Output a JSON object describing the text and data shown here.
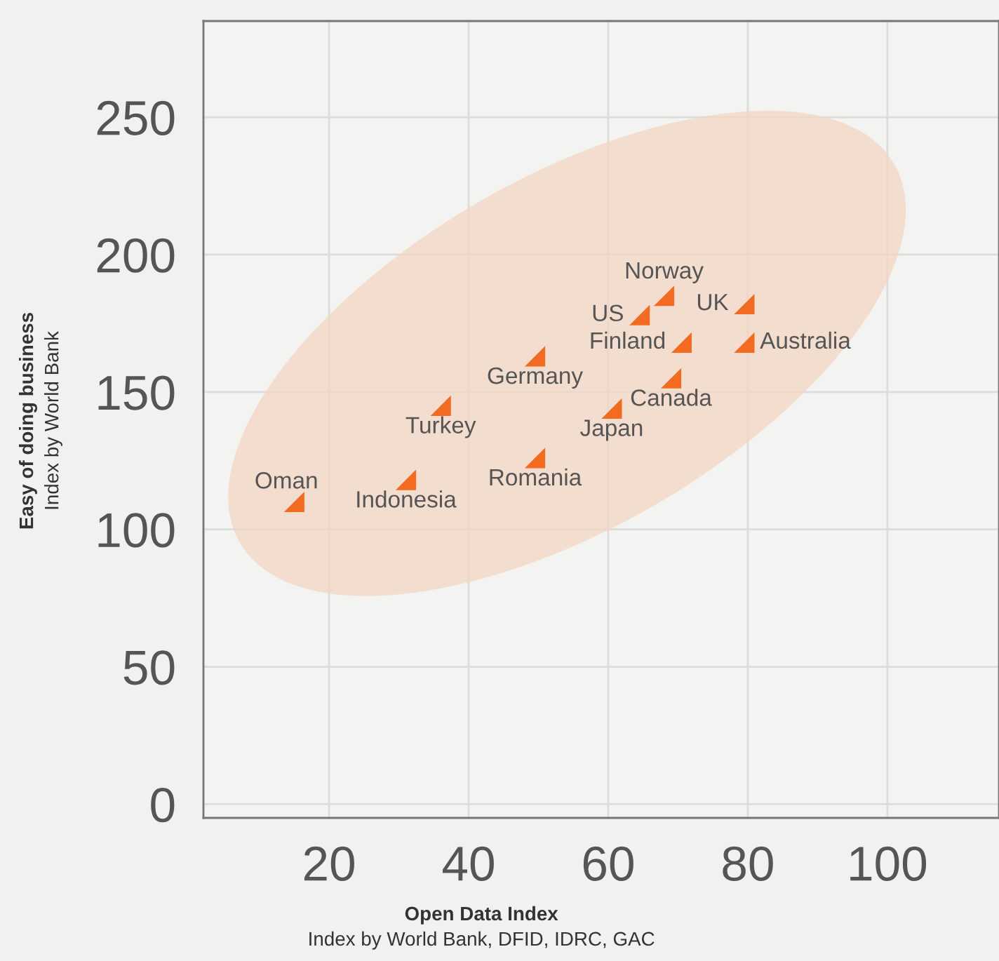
{
  "chart_data": {
    "type": "scatter",
    "xlabel": "Open Data Index\nIndex by World Bank, DFID, IDRC, GAC",
    "ylabel": "Easy of doing business\nIndex by World Bank",
    "series": [
      {
        "name": "Oman",
        "x": [
          15
        ],
        "values": [
          110
        ]
      },
      {
        "name": "Indonesia",
        "x": [
          31
        ],
        "values": [
          118
        ]
      },
      {
        "name": "Turkey",
        "x": [
          36
        ],
        "values": [
          145
        ]
      },
      {
        "name": "Romania",
        "x": [
          49.5
        ],
        "values": [
          126
        ]
      },
      {
        "name": "Germany",
        "x": [
          49.5
        ],
        "values": [
          163
        ]
      },
      {
        "name": "Japan",
        "x": [
          60.5
        ],
        "values": [
          144
        ]
      },
      {
        "name": "Canada",
        "x": [
          69
        ],
        "values": [
          155
        ]
      },
      {
        "name": "Finland",
        "x": [
          70.5
        ],
        "values": [
          168
        ]
      },
      {
        "name": "US",
        "x": [
          64.5
        ],
        "values": [
          178
        ]
      },
      {
        "name": "Norway",
        "x": [
          68
        ],
        "values": [
          185
        ]
      },
      {
        "name": "UK",
        "x": [
          79.5
        ],
        "values": [
          182
        ]
      },
      {
        "name": "Australia",
        "x": [
          79.5
        ],
        "values": [
          168
        ]
      }
    ],
    "color": "#f26b21",
    "marker": "triangle",
    "grid": true,
    "xlim": [
      2,
      116
    ],
    "ylim": [
      -5,
      285
    ],
    "xticks": [
      20,
      40,
      60,
      80,
      100
    ],
    "yticks": [
      0,
      50,
      100,
      150,
      200,
      250
    ]
  }
}
